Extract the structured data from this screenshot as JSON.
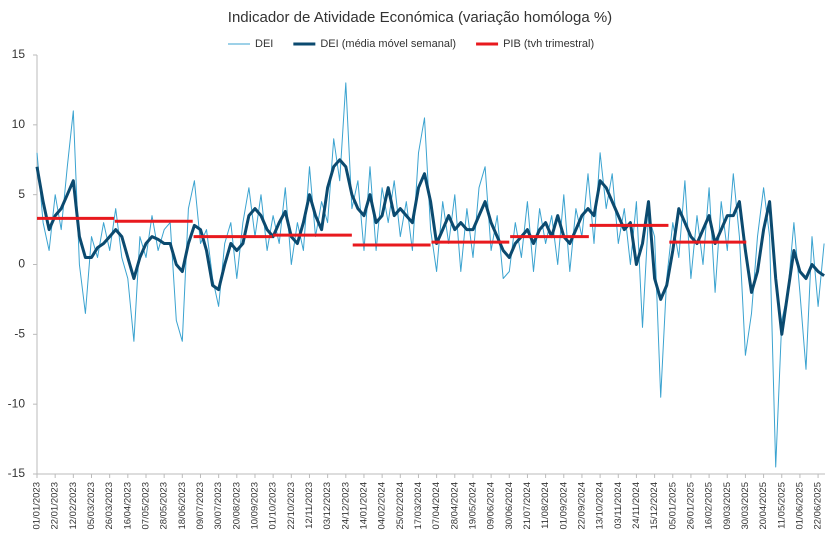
{
  "chart_data": {
    "type": "line",
    "title": "Indicador de Atividade Económica (variação homóloga %)",
    "x": [
      "01/01/2023",
      "08/01/2023",
      "15/01/2023",
      "22/01/2023",
      "29/01/2023",
      "05/02/2023",
      "12/02/2023",
      "19/02/2023",
      "26/02/2023",
      "05/03/2023",
      "12/03/2023",
      "19/03/2023",
      "26/03/2023",
      "02/04/2023",
      "09/04/2023",
      "16/04/2023",
      "23/04/2023",
      "30/04/2023",
      "07/05/2023",
      "14/05/2023",
      "21/05/2023",
      "28/05/2023",
      "04/06/2023",
      "11/06/2023",
      "18/06/2023",
      "25/06/2023",
      "02/07/2023",
      "09/07/2023",
      "16/07/2023",
      "23/07/2023",
      "30/07/2023",
      "06/08/2023",
      "13/08/2023",
      "20/08/2023",
      "27/08/2023",
      "03/09/2023",
      "10/09/2023",
      "17/09/2023",
      "24/09/2023",
      "01/10/2023",
      "08/10/2023",
      "15/10/2023",
      "22/10/2023",
      "29/10/2023",
      "05/11/2023",
      "12/11/2023",
      "19/11/2023",
      "26/11/2023",
      "03/12/2023",
      "10/12/2023",
      "17/12/2023",
      "24/12/2023",
      "31/12/2023",
      "07/01/2024",
      "14/01/2024",
      "21/01/2024",
      "28/01/2024",
      "04/02/2024",
      "11/02/2024",
      "18/02/2024",
      "25/02/2024",
      "03/03/2024",
      "10/03/2024",
      "17/03/2024",
      "24/03/2024",
      "31/03/2024",
      "07/04/2024",
      "14/04/2024",
      "21/04/2024",
      "28/04/2024",
      "05/05/2024",
      "12/05/2024",
      "19/05/2024",
      "26/05/2024",
      "02/06/2024",
      "09/06/2024",
      "16/06/2024",
      "23/06/2024",
      "30/06/2024",
      "07/07/2024",
      "14/07/2024",
      "21/07/2024",
      "28/07/2024",
      "04/08/2024",
      "11/08/2024",
      "18/08/2024",
      "25/08/2024",
      "01/09/2024",
      "08/09/2024",
      "15/09/2024",
      "22/09/2024",
      "29/09/2024",
      "06/10/2024",
      "13/10/2024",
      "20/10/2024",
      "27/10/2024",
      "03/11/2024",
      "10/11/2024",
      "17/11/2024",
      "24/11/2024",
      "01/12/2024",
      "08/12/2024",
      "15/12/2024",
      "22/12/2024",
      "29/12/2024",
      "05/01/2025",
      "12/01/2025",
      "19/01/2025",
      "26/01/2025",
      "02/02/2025",
      "09/02/2025",
      "16/02/2025",
      "23/02/2025",
      "02/03/2025",
      "09/03/2025",
      "16/03/2025",
      "23/03/2025",
      "30/03/2025",
      "06/04/2025",
      "13/04/2025",
      "20/04/2025",
      "27/04/2025",
      "04/05/2025",
      "11/05/2025",
      "18/05/2025",
      "25/05/2025",
      "01/06/2025",
      "08/06/2025",
      "15/06/2025",
      "22/06/2025",
      "29/06/2025"
    ],
    "series": [
      {
        "name": "DEI",
        "color": "#3ba3d0",
        "width": 1,
        "values": [
          8,
          3,
          1,
          5,
          2.5,
          7,
          11,
          0,
          -3.5,
          2,
          0.5,
          3,
          1,
          4,
          0.5,
          -1,
          -5.5,
          2,
          0.5,
          3.5,
          1,
          2.5,
          3,
          -4,
          -5.5,
          4,
          6,
          1.5,
          2.5,
          -1,
          -3,
          1.5,
          3,
          -1,
          3,
          5.5,
          2,
          5,
          1,
          3.5,
          1.5,
          5.5,
          0,
          3,
          1,
          7,
          2,
          4.5,
          3,
          9,
          6,
          13,
          4,
          6,
          1,
          7,
          1,
          5.5,
          3,
          6,
          2,
          4.5,
          1,
          8,
          10.5,
          2.5,
          -0.5,
          4.5,
          1.5,
          5,
          -0.5,
          4,
          0.5,
          5.5,
          7,
          1,
          3.5,
          -1,
          -0.5,
          3,
          0.5,
          4.5,
          -0.5,
          4,
          1.5,
          3.5,
          0,
          5,
          -0.5,
          4,
          2,
          6.5,
          1.5,
          8,
          4,
          6.5,
          1.5,
          4,
          0,
          4.5,
          -4.5,
          3.5,
          2,
          -9.5,
          -1,
          3,
          0.5,
          6,
          -1,
          3.5,
          0,
          5.5,
          -2,
          4.5,
          1,
          6.5,
          2,
          -6.5,
          -3.5,
          2,
          5.5,
          2,
          -14.5,
          -4,
          -2,
          3,
          -2,
          -7.5,
          2,
          -3,
          1.5
        ]
      },
      {
        "name": "DEI (média móvel semanal)",
        "color": "#0b4a6f",
        "width": 3,
        "values": [
          7,
          4.5,
          2.5,
          3.5,
          4,
          5,
          6,
          2,
          0.5,
          0.5,
          1.2,
          1.5,
          2,
          2.5,
          2,
          0.5,
          -1,
          0.5,
          1.5,
          2,
          1.8,
          1.5,
          1.5,
          0,
          -0.5,
          1.5,
          2.8,
          2.5,
          1,
          -1.5,
          -1.8,
          0,
          1.5,
          1,
          1.5,
          3.5,
          4,
          3.5,
          2.5,
          2,
          3,
          3.8,
          2,
          1.5,
          3,
          5,
          3.5,
          2.5,
          5.5,
          7,
          7.5,
          7,
          5,
          4,
          3.5,
          5,
          3,
          3.5,
          5.5,
          3.5,
          4,
          3.5,
          3,
          5.5,
          6.5,
          4.5,
          1.5,
          2.5,
          3.5,
          2.5,
          3,
          2.5,
          2.5,
          3.5,
          4.5,
          3,
          2,
          1,
          0.5,
          1.5,
          2,
          2.5,
          1.5,
          2.5,
          3,
          2,
          3.5,
          2,
          1.5,
          2.5,
          3.5,
          4,
          3.5,
          6,
          5.5,
          4.5,
          3.5,
          2.5,
          3,
          0,
          1.5,
          4.5,
          -1,
          -2.5,
          -1.5,
          1,
          4,
          3,
          2,
          1.5,
          2.5,
          3.5,
          1.5,
          2.5,
          3.5,
          3.5,
          4.5,
          1,
          -2,
          -0.5,
          2.5,
          4.5,
          -1,
          -5,
          -2,
          1,
          -0.5,
          -1,
          0,
          -0.5,
          -0.8
        ]
      }
    ],
    "steps": {
      "name": "PIB (tvh trimestral)",
      "color": "#e8191e",
      "x": [
        "01/01/2023",
        "01/04/2023",
        "01/07/2023",
        "01/10/2023",
        "01/01/2024",
        "01/04/2024",
        "01/07/2024",
        "01/10/2024",
        "01/01/2025"
      ],
      "x_end": [
        "31/03/2023",
        "30/06/2023",
        "30/09/2023",
        "31/12/2023",
        "31/03/2024",
        "30/06/2024",
        "30/09/2024",
        "31/12/2024",
        "31/03/2025"
      ],
      "values": [
        3.3,
        3.1,
        2.0,
        2.1,
        1.4,
        1.6,
        2.0,
        2.8,
        1.6
      ]
    },
    "xlim": [
      "01/01/2023",
      "30/06/2025"
    ],
    "xticks": [
      "01/01/2023",
      "22/01/2023",
      "12/02/2023",
      "05/03/2023",
      "26/03/2023",
      "16/04/2023",
      "07/05/2023",
      "28/05/2023",
      "18/06/2023",
      "09/07/2023",
      "30/07/2023",
      "20/08/2023",
      "10/09/2023",
      "01/10/2023",
      "22/10/2023",
      "12/11/2023",
      "03/12/2023",
      "24/12/2023",
      "14/01/2024",
      "04/02/2024",
      "25/02/2024",
      "17/03/2024",
      "07/04/2024",
      "28/04/2024",
      "19/05/2024",
      "09/06/2024",
      "30/06/2024",
      "21/07/2024",
      "11/08/2024",
      "01/09/2024",
      "22/09/2024",
      "13/10/2024",
      "03/11/2024",
      "24/11/2024",
      "15/12/2024",
      "05/01/2025",
      "26/01/2025",
      "16/02/2025",
      "09/03/2025",
      "30/03/2025",
      "20/04/2025",
      "11/05/2025",
      "01/06/2025",
      "22/06/2025"
    ],
    "ylim": [
      -15,
      15
    ],
    "yticks": [
      -15,
      -10,
      -5,
      0,
      5,
      10,
      15
    ]
  }
}
